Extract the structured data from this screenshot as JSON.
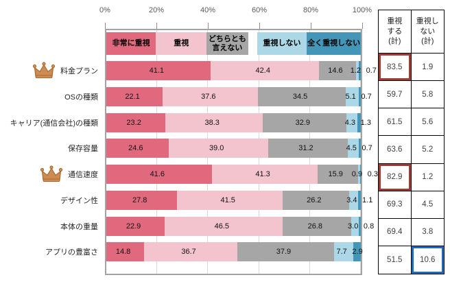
{
  "chart_data": {
    "type": "bar",
    "orientation": "horizontal-stacked",
    "title": "",
    "categories": [
      "料金プラン",
      "OSの種類",
      "キャリア(通信会社)の種類",
      "保存容量",
      "通信速度",
      "デザイン性",
      "本体の重量",
      "アプリの豊富さ"
    ],
    "series": [
      {
        "name": "非常に重視",
        "color": "#e0697e",
        "values": [
          "41.1",
          "22.1",
          "23.2",
          "24.6",
          "41.6",
          "27.8",
          "22.9",
          "14.8"
        ]
      },
      {
        "name": "重視",
        "color": "#f3c3ce",
        "values": [
          "42.4",
          "37.6",
          "38.3",
          "39.0",
          "41.3",
          "41.5",
          "46.5",
          "36.7"
        ]
      },
      {
        "name": "どちらとも\n言えない",
        "color": "#a6a6a6",
        "values": [
          "14.6",
          "34.5",
          "32.9",
          "31.2",
          "15.9",
          "26.2",
          "26.8",
          "37.9"
        ]
      },
      {
        "name": "重視しない",
        "color": "#abd7e6",
        "values": [
          "1.2",
          "5.1",
          "4.3",
          "4.5",
          "0.9",
          "3.4",
          "3.0",
          "7.7"
        ]
      },
      {
        "name": "全く重視しない",
        "color": "#4496b8",
        "values": [
          "0.7",
          "0.7",
          "1.3",
          "0.7",
          "0.3",
          "1.1",
          "0.8",
          "2.9"
        ]
      }
    ],
    "x_ticks": [
      "0%",
      "20%",
      "40%",
      "60%",
      "80%",
      "100%"
    ],
    "xlim": [
      0,
      100
    ],
    "grid": "vertical",
    "legend_position": "top-inside",
    "crowned_category_indexes": [
      0,
      4
    ],
    "summary_table": {
      "columns": [
        "重視\nする\n(計)",
        "重視し\nない\n(計)"
      ],
      "agree_totals": [
        "83.5",
        "59.7",
        "61.5",
        "63.6",
        "82.9",
        "69.3",
        "69.4",
        "51.5"
      ],
      "disagree_totals": [
        "1.9",
        "5.8",
        "5.6",
        "5.2",
        "1.2",
        "4.5",
        "3.8",
        "10.6"
      ],
      "agree_highlight_indexes": [
        0,
        4
      ],
      "disagree_highlight_indexes": [
        7
      ],
      "highlight_colors": {
        "agree": "#9e3b32",
        "disagree": "#1c69be"
      }
    },
    "crown_color": "#ce8b52"
  }
}
